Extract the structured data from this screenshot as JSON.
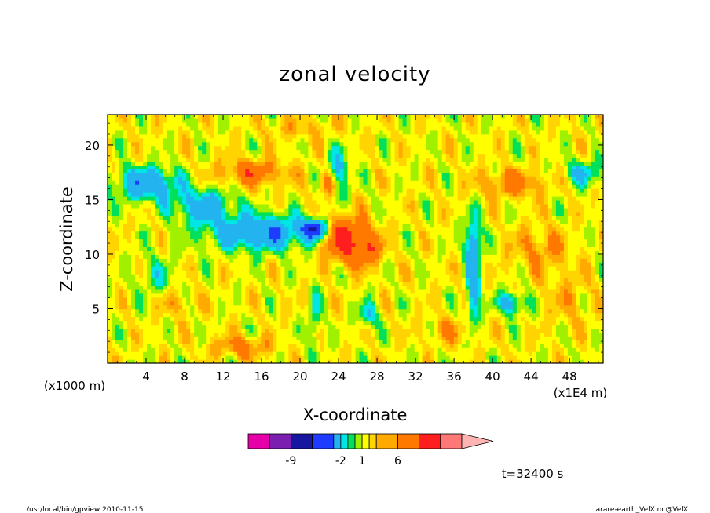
{
  "chart_data": {
    "type": "heatmap",
    "title": "zonal velocity",
    "xlabel": "X-coordinate",
    "ylabel": "Z-coordinate",
    "x_unit_label": "(x1E4 m)",
    "z_unit_label": "(x1000 m)",
    "x_ticks": [
      "4",
      "8",
      "12",
      "16",
      "20",
      "24",
      "28",
      "32",
      "36",
      "40",
      "44",
      "48"
    ],
    "y_ticks": [
      "5",
      "10",
      "15",
      "20"
    ],
    "xlim": [
      0,
      51.5
    ],
    "ylim": [
      0,
      22.8
    ],
    "colorbar": {
      "levels": [
        -15,
        -12,
        -9,
        -6,
        -3,
        -2,
        -1,
        0,
        1,
        2,
        3,
        6,
        9,
        12,
        15
      ],
      "labels": [
        "-9",
        "-2",
        "1",
        "6"
      ],
      "colors": [
        "#e600a8",
        "#7a1fb0",
        "#1616a0",
        "#1e3cff",
        "#23b4f0",
        "#00e6e6",
        "#00e05a",
        "#a0f000",
        "#ffff00",
        "#ffd400",
        "#ffaa00",
        "#ff7800",
        "#ff1e1e",
        "#ff7878",
        "#ffb4b4"
      ]
    },
    "time_label": "t=32400 s"
  },
  "footer": {
    "left": "/usr/local/bin/gpview   2010-11-15",
    "right": "arare-earth_VelX.nc@VelX"
  }
}
